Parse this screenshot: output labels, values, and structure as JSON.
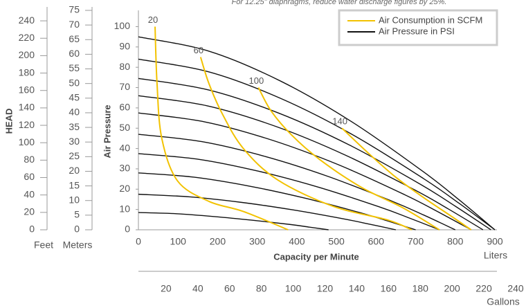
{
  "chart_data": {
    "type": "line",
    "subtitle": "For 12.25\" diaphragms, reduce water discharge figures by 25%.",
    "xlabel": "Capacity per Minute",
    "ylabel": "Air Pressure",
    "xunit": "Liters",
    "xlim": [
      0,
      900
    ],
    "xticks": [
      0,
      100,
      200,
      300,
      400,
      500,
      600,
      700,
      800,
      900
    ],
    "ylim": [
      0,
      108
    ],
    "yticks": [
      0,
      10,
      20,
      30,
      40,
      50,
      60,
      70,
      80,
      90,
      100
    ],
    "head_axis": {
      "label": "HEAD",
      "feet": {
        "unit": "Feet",
        "ylim": [
          0,
          252
        ],
        "yticks": [
          0,
          20,
          40,
          60,
          80,
          100,
          120,
          140,
          160,
          180,
          200,
          220,
          240
        ]
      },
      "meters": {
        "unit": "Meters",
        "ylim": [
          0,
          75
        ],
        "yticks": [
          0,
          5,
          10,
          15,
          20,
          25,
          30,
          35,
          40,
          45,
          50,
          55,
          60,
          65,
          70,
          75
        ]
      }
    },
    "gallons_axis": {
      "unit": "Gallons",
      "xlim": [
        0,
        240
      ],
      "xticks": [
        20,
        40,
        60,
        80,
        100,
        120,
        140,
        160,
        180,
        200,
        220,
        240
      ]
    },
    "legend": "upper right",
    "series": [
      {
        "name": "Air Consumption in SCFM",
        "color": "#f2c200",
        "lines": [
          {
            "label": "20",
            "x": [
              42,
              47,
              59,
              99,
              178,
              265,
              378
            ],
            "values": [
              100,
              72,
              45,
              24,
              14,
              9,
              0
            ]
          },
          {
            "label": "60",
            "x": [
              157,
              178,
              212,
              265,
              352,
              491,
              630,
              690
            ],
            "values": [
              85,
              72,
              57,
              40,
              24.5,
              11.6,
              4.8,
              0
            ]
          },
          {
            "label": "100",
            "x": [
              303,
              335,
              387,
              457,
              562,
              667,
              760
            ],
            "values": [
              70,
              58.5,
              46.6,
              34.7,
              21,
              10.9,
              0
            ]
          },
          {
            "label": "140",
            "x": [
              514,
              579,
              649,
              719,
              789,
              840
            ],
            "values": [
              50,
              38,
              26,
              16,
              6.8,
              0
            ]
          }
        ]
      },
      {
        "name": "Air Pressure in PSI",
        "color": "#111111",
        "lines": [
          {
            "x": [
              0,
              180,
              360,
              540,
              720,
              810,
              900
            ],
            "values": [
              95,
              87.8,
              73.1,
              53.0,
              28.5,
              14.7,
              0
            ]
          },
          {
            "x": [
              0,
              180,
              360,
              540,
              720,
              810,
              900
            ],
            "values": [
              84,
              77.6,
              64.6,
              46.9,
              25.2,
              13.0,
              0
            ]
          },
          {
            "x": [
              0,
              178,
              356,
              534,
              712,
              801,
              890
            ],
            "values": [
              74.5,
              68.8,
              57.3,
              41.6,
              22.4,
              11.5,
              0
            ]
          },
          {
            "x": [
              0,
              174,
              348,
              522,
              696,
              783,
              870
            ],
            "values": [
              66,
              61.0,
              50.8,
              36.8,
              19.8,
              10.2,
              0
            ]
          },
          {
            "x": [
              0,
              168,
              336,
              504,
              672,
              756,
              840
            ],
            "values": [
              57.5,
              53.1,
              44.2,
              32.1,
              17.3,
              8.9,
              0
            ]
          },
          {
            "x": [
              0,
              160,
              320,
              480,
              640,
              720,
              800
            ],
            "values": [
              47,
              43.4,
              36.1,
              26.2,
              14.1,
              7.3,
              0
            ]
          },
          {
            "x": [
              0,
              152,
              304,
              456,
              608,
              684,
              760
            ],
            "values": [
              37.5,
              34.7,
              28.8,
              20.9,
              11.3,
              5.8,
              0
            ]
          },
          {
            "x": [
              0,
              140,
              280,
              420,
              560,
              630,
              700
            ],
            "values": [
              28,
              25.9,
              21.5,
              15.6,
              8.4,
              4.3,
              0
            ]
          },
          {
            "x": [
              0,
              130,
              260,
              390,
              520,
              585,
              650
            ],
            "values": [
              17.5,
              16.2,
              13.5,
              9.8,
              5.3,
              2.7,
              0
            ]
          },
          {
            "x": [
              0,
              96,
              192,
              288,
              384,
              432,
              480
            ],
            "values": [
              8.5,
              7.9,
              6.5,
              4.7,
              2.6,
              1.3,
              0
            ]
          }
        ]
      }
    ]
  }
}
